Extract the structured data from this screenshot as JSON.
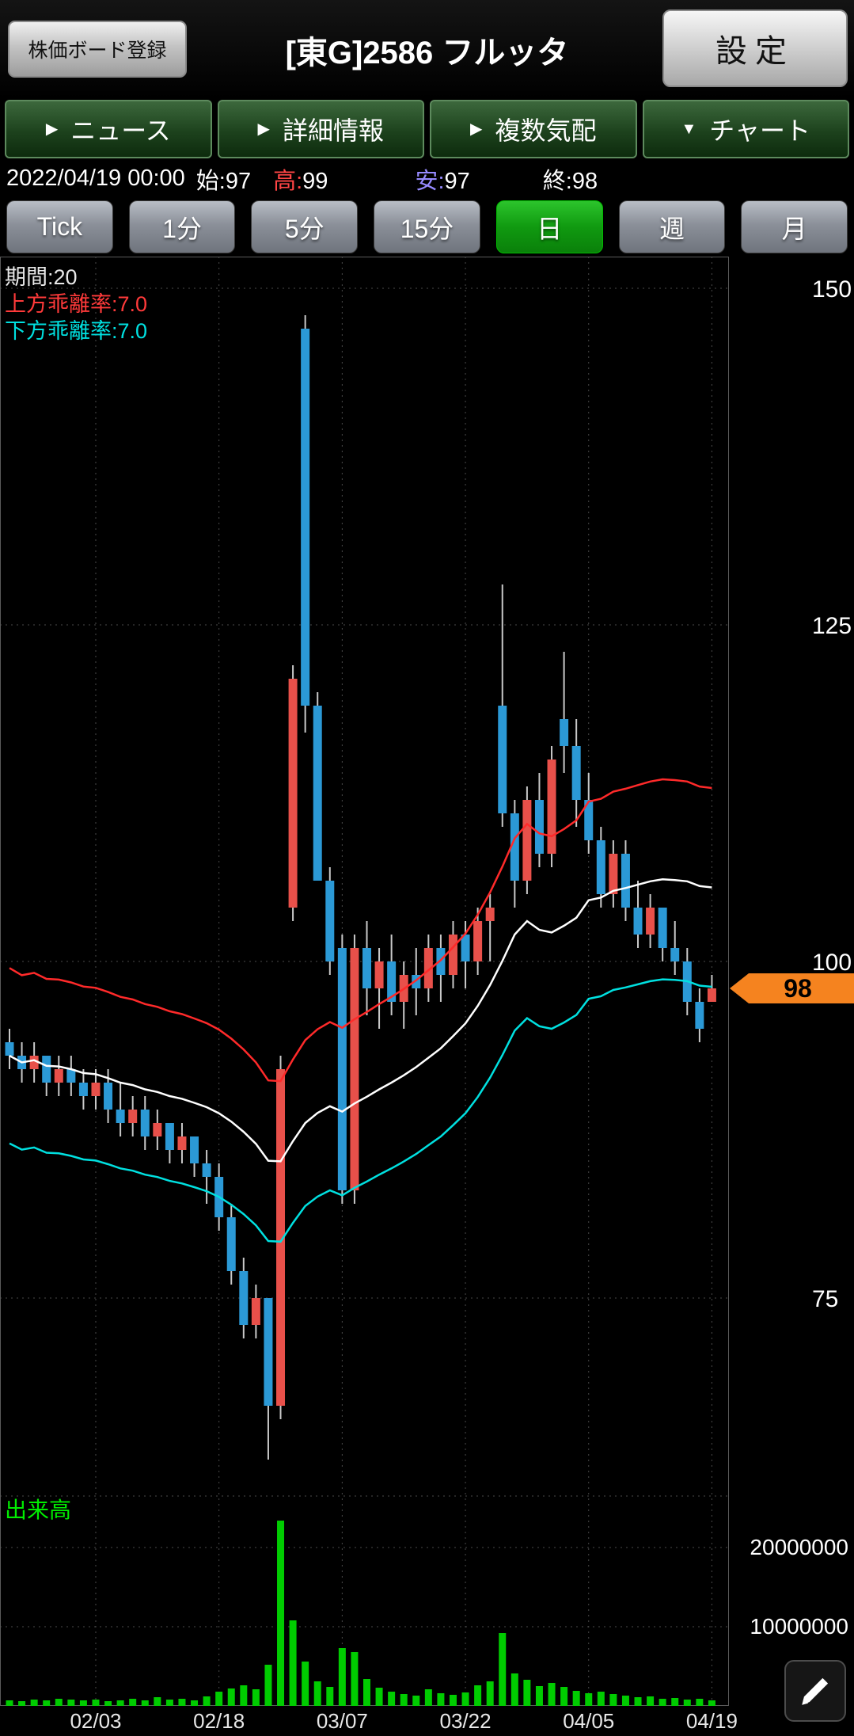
{
  "header": {
    "board_button": "株価ボード登録",
    "title": "[東G]2586 フルッタ",
    "settings_button": "設定"
  },
  "nav_tabs": [
    {
      "label": "ニュース",
      "icon": "triangle-right"
    },
    {
      "label": "詳細情報",
      "icon": "triangle-right"
    },
    {
      "label": "複数気配",
      "icon": "triangle-right"
    },
    {
      "label": "チャート",
      "icon": "triangle-down",
      "selected": true
    }
  ],
  "quote_bar": {
    "datetime": "2022/04/19 00:00",
    "open_label": "始:",
    "open_value": "97",
    "high_label": "高:",
    "high_value": "99",
    "low_label": "安:",
    "low_value": "97",
    "close_label": "終:",
    "close_value": "98"
  },
  "timeframe_buttons": [
    {
      "label": "Tick",
      "selected": false
    },
    {
      "label": "1分",
      "selected": false
    },
    {
      "label": "5分",
      "selected": false
    },
    {
      "label": "15分",
      "selected": false
    },
    {
      "label": "日",
      "selected": true
    },
    {
      "label": "週",
      "selected": false
    },
    {
      "label": "月",
      "selected": false
    }
  ],
  "chart_data": {
    "type": "candlestick",
    "title": "[東G]2586 フルッタ 日足チャート",
    "indicator_labels": {
      "period": "期間:20",
      "upper": "上方乖離率:7.0",
      "lower": "下方乖離率:7.0"
    },
    "ma_period": 20,
    "envelope_upper_pct": 7.0,
    "envelope_lower_pct": 7.0,
    "y_ticks": [
      150,
      125,
      100,
      75
    ],
    "x_tick_labels": [
      "02/03",
      "02/18",
      "03/07",
      "03/22",
      "04/05",
      "04/19"
    ],
    "x_tick_indices": [
      7,
      17,
      27,
      37,
      47,
      57
    ],
    "last_price": 98,
    "volume_label": "出来高",
    "volume_ticks": [
      {
        "label": "20000000",
        "value": 20000000
      },
      {
        "label": "10000000",
        "value": 10000000
      }
    ],
    "candles": [
      {
        "d": "01/25",
        "o": 94,
        "h": 95,
        "l": 92,
        "c": 93
      },
      {
        "d": "01/26",
        "o": 93,
        "h": 94,
        "l": 91,
        "c": 92
      },
      {
        "d": "01/27",
        "o": 92,
        "h": 94,
        "l": 91,
        "c": 93
      },
      {
        "d": "01/28",
        "o": 93,
        "h": 93,
        "l": 90,
        "c": 91
      },
      {
        "d": "01/31",
        "o": 91,
        "h": 93,
        "l": 90,
        "c": 92
      },
      {
        "d": "02/01",
        "o": 92,
        "h": 93,
        "l": 90,
        "c": 91
      },
      {
        "d": "02/02",
        "o": 91,
        "h": 92,
        "l": 89,
        "c": 90
      },
      {
        "d": "02/03",
        "o": 90,
        "h": 92,
        "l": 89,
        "c": 91
      },
      {
        "d": "02/04",
        "o": 91,
        "h": 92,
        "l": 88,
        "c": 89
      },
      {
        "d": "02/07",
        "o": 89,
        "h": 91,
        "l": 87,
        "c": 88
      },
      {
        "d": "02/08",
        "o": 88,
        "h": 90,
        "l": 87,
        "c": 89
      },
      {
        "d": "02/09",
        "o": 89,
        "h": 90,
        "l": 86,
        "c": 87
      },
      {
        "d": "02/10",
        "o": 87,
        "h": 89,
        "l": 86,
        "c": 88
      },
      {
        "d": "02/14",
        "o": 88,
        "h": 88,
        "l": 85,
        "c": 86
      },
      {
        "d": "02/15",
        "o": 86,
        "h": 88,
        "l": 85,
        "c": 87
      },
      {
        "d": "02/16",
        "o": 87,
        "h": 87,
        "l": 84,
        "c": 85
      },
      {
        "d": "02/17",
        "o": 85,
        "h": 86,
        "l": 82,
        "c": 84
      },
      {
        "d": "02/18",
        "o": 84,
        "h": 85,
        "l": 80,
        "c": 81
      },
      {
        "d": "02/21",
        "o": 81,
        "h": 82,
        "l": 76,
        "c": 77
      },
      {
        "d": "02/22",
        "o": 77,
        "h": 78,
        "l": 72,
        "c": 73
      },
      {
        "d": "02/24",
        "o": 73,
        "h": 76,
        "l": 72,
        "c": 75
      },
      {
        "d": "02/25",
        "o": 75,
        "h": 75,
        "l": 63,
        "c": 67
      },
      {
        "d": "02/28",
        "o": 67,
        "h": 93,
        "l": 66,
        "c": 92
      },
      {
        "d": "03/01",
        "o": 104,
        "h": 122,
        "l": 103,
        "c": 121
      },
      {
        "d": "03/02",
        "o": 147,
        "h": 148,
        "l": 117,
        "c": 119
      },
      {
        "d": "03/03",
        "o": 119,
        "h": 120,
        "l": 106,
        "c": 106
      },
      {
        "d": "03/04",
        "o": 106,
        "h": 107,
        "l": 99,
        "c": 100
      },
      {
        "d": "03/07",
        "o": 101,
        "h": 102,
        "l": 82,
        "c": 83
      },
      {
        "d": "03/08",
        "o": 83,
        "h": 102,
        "l": 82,
        "c": 101
      },
      {
        "d": "03/09",
        "o": 101,
        "h": 103,
        "l": 96,
        "c": 98
      },
      {
        "d": "03/10",
        "o": 98,
        "h": 101,
        "l": 95,
        "c": 100
      },
      {
        "d": "03/11",
        "o": 100,
        "h": 102,
        "l": 96,
        "c": 97
      },
      {
        "d": "03/14",
        "o": 97,
        "h": 100,
        "l": 95,
        "c": 99
      },
      {
        "d": "03/15",
        "o": 99,
        "h": 101,
        "l": 96,
        "c": 98
      },
      {
        "d": "03/16",
        "o": 98,
        "h": 102,
        "l": 97,
        "c": 101
      },
      {
        "d": "03/17",
        "o": 101,
        "h": 102,
        "l": 97,
        "c": 99
      },
      {
        "d": "03/18",
        "o": 99,
        "h": 103,
        "l": 98,
        "c": 102
      },
      {
        "d": "03/22",
        "o": 102,
        "h": 103,
        "l": 98,
        "c": 100
      },
      {
        "d": "03/23",
        "o": 100,
        "h": 104,
        "l": 99,
        "c": 103
      },
      {
        "d": "03/24",
        "o": 103,
        "h": 105,
        "l": 100,
        "c": 104
      },
      {
        "d": "03/25",
        "o": 119,
        "h": 128,
        "l": 110,
        "c": 111
      },
      {
        "d": "03/28",
        "o": 111,
        "h": 112,
        "l": 104,
        "c": 106
      },
      {
        "d": "03/29",
        "o": 106,
        "h": 113,
        "l": 105,
        "c": 112
      },
      {
        "d": "03/30",
        "o": 112,
        "h": 114,
        "l": 107,
        "c": 108
      },
      {
        "d": "03/31",
        "o": 108,
        "h": 116,
        "l": 107,
        "c": 115
      },
      {
        "d": "04/01",
        "o": 118,
        "h": 123,
        "l": 114,
        "c": 116
      },
      {
        "d": "04/04",
        "o": 116,
        "h": 118,
        "l": 110,
        "c": 112
      },
      {
        "d": "04/05",
        "o": 112,
        "h": 114,
        "l": 108,
        "c": 109
      },
      {
        "d": "04/06",
        "o": 109,
        "h": 110,
        "l": 104,
        "c": 105
      },
      {
        "d": "04/07",
        "o": 105,
        "h": 109,
        "l": 104,
        "c": 108
      },
      {
        "d": "04/08",
        "o": 108,
        "h": 109,
        "l": 103,
        "c": 104
      },
      {
        "d": "04/11",
        "o": 104,
        "h": 106,
        "l": 101,
        "c": 102
      },
      {
        "d": "04/12",
        "o": 102,
        "h": 105,
        "l": 101,
        "c": 104
      },
      {
        "d": "04/13",
        "o": 104,
        "h": 104,
        "l": 100,
        "c": 101
      },
      {
        "d": "04/14",
        "o": 101,
        "h": 103,
        "l": 99,
        "c": 100
      },
      {
        "d": "04/15",
        "o": 100,
        "h": 101,
        "l": 96,
        "c": 97
      },
      {
        "d": "04/18",
        "o": 97,
        "h": 98,
        "l": 94,
        "c": 95
      },
      {
        "d": "04/19",
        "o": 97,
        "h": 99,
        "l": 97,
        "c": 98
      }
    ],
    "volumes": [
      700000,
      600000,
      800000,
      700000,
      900000,
      800000,
      700000,
      800000,
      600000,
      700000,
      900000,
      700000,
      1100000,
      800000,
      900000,
      700000,
      1200000,
      1800000,
      2200000,
      2600000,
      2100000,
      5200000,
      23400000,
      10800000,
      5600000,
      3100000,
      2400000,
      7300000,
      6800000,
      3400000,
      2300000,
      1800000,
      1500000,
      1300000,
      2100000,
      1600000,
      1400000,
      1700000,
      2600000,
      3100000,
      9200000,
      4100000,
      3300000,
      2500000,
      2900000,
      2400000,
      1900000,
      1600000,
      1800000,
      1500000,
      1300000,
      1100000,
      1200000,
      900000,
      1000000,
      800000,
      900000,
      700000
    ],
    "colors": {
      "up": "#e8504a",
      "down": "#2b99d6",
      "ma": "#ffffff",
      "upper": "#ff2a2a",
      "lower": "#00e0e0",
      "volume": "#00cc00",
      "price_tag": "#f5831f"
    }
  }
}
